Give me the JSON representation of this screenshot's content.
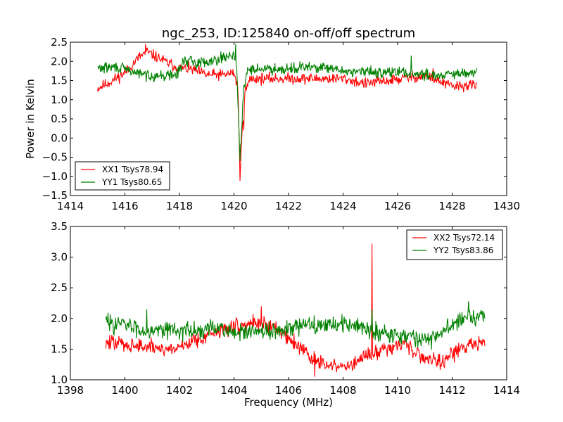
{
  "figure": {
    "title": "ngc_253, ID:125840 on-off/off spectrum",
    "x_axis_label": "Frequency (MHz)",
    "y_axis_label": "Power in Kelvin"
  },
  "chart_data": [
    {
      "type": "line",
      "panel": "top",
      "title": "ngc_253, ID:125840 on-off/off spectrum",
      "xlabel": "",
      "ylabel": "Power in Kelvin",
      "xlim": [
        1414,
        1430
      ],
      "ylim": [
        -1.5,
        2.5
      ],
      "xticks": [
        1414,
        1416,
        1418,
        1420,
        1422,
        1424,
        1426,
        1428,
        1430
      ],
      "yticks": [
        -1.5,
        -1.0,
        -0.5,
        0.0,
        0.5,
        1.0,
        1.5,
        2.0,
        2.5
      ],
      "xtick_labels": [
        "1414",
        "1416",
        "1418",
        "1420",
        "1422",
        "1424",
        "1426",
        "1428",
        "1430"
      ],
      "ytick_labels": [
        "−1.5",
        "−1.0",
        "−0.5",
        "0.0",
        "0.5",
        "1.0",
        "1.5",
        "2.0",
        "2.5"
      ],
      "grid": false,
      "legend_position": "bottom-left",
      "x_range": [
        1415.0,
        1428.9
      ],
      "series": [
        {
          "name": "XX1 Tsys78.94",
          "color": "#ff0000",
          "noise": 0.09,
          "seed": 11,
          "points": [
            [
              1415.0,
              1.3
            ],
            [
              1415.5,
              1.48
            ],
            [
              1416.0,
              1.7
            ],
            [
              1416.5,
              2.1
            ],
            [
              1416.8,
              2.25
            ],
            [
              1417.2,
              2.1
            ],
            [
              1417.6,
              1.95
            ],
            [
              1418.0,
              1.82
            ],
            [
              1418.4,
              1.8
            ],
            [
              1419.0,
              1.65
            ],
            [
              1419.6,
              1.65
            ],
            [
              1420.0,
              1.7
            ],
            [
              1420.15,
              1.3
            ],
            [
              1420.22,
              -1.1
            ],
            [
              1420.3,
              0.2
            ],
            [
              1420.4,
              1.2
            ],
            [
              1420.6,
              1.55
            ],
            [
              1421.5,
              1.55
            ],
            [
              1423.0,
              1.55
            ],
            [
              1424.0,
              1.55
            ],
            [
              1424.8,
              1.42
            ],
            [
              1425.5,
              1.48
            ],
            [
              1426.5,
              1.58
            ],
            [
              1427.0,
              1.62
            ],
            [
              1428.0,
              1.35
            ],
            [
              1428.9,
              1.38
            ]
          ],
          "spikes": [
            [
              1416.75,
              2.45
            ],
            [
              1420.22,
              -1.12
            ],
            [
              1420.35,
              0.2
            ],
            [
              1427.3,
              1.82
            ]
          ]
        },
        {
          "name": "YY1 Tsys80.65",
          "color": "#008000",
          "noise": 0.09,
          "seed": 29,
          "points": [
            [
              1415.0,
              1.82
            ],
            [
              1415.7,
              1.85
            ],
            [
              1416.2,
              1.75
            ],
            [
              1416.7,
              1.65
            ],
            [
              1417.3,
              1.62
            ],
            [
              1417.9,
              1.65
            ],
            [
              1418.2,
              2.05
            ],
            [
              1418.6,
              1.95
            ],
            [
              1419.0,
              2.0
            ],
            [
              1419.6,
              2.1
            ],
            [
              1420.0,
              2.2
            ],
            [
              1420.1,
              1.8
            ],
            [
              1420.22,
              -0.6
            ],
            [
              1420.35,
              1.2
            ],
            [
              1420.5,
              1.8
            ],
            [
              1421.0,
              1.8
            ],
            [
              1422.0,
              1.82
            ],
            [
              1423.0,
              1.85
            ],
            [
              1424.0,
              1.75
            ],
            [
              1425.0,
              1.72
            ],
            [
              1426.0,
              1.72
            ],
            [
              1427.0,
              1.65
            ],
            [
              1428.0,
              1.65
            ],
            [
              1428.9,
              1.7
            ]
          ],
          "spikes": [
            [
              1420.05,
              2.45
            ],
            [
              1420.22,
              -0.6
            ],
            [
              1426.5,
              2.15
            ]
          ]
        }
      ]
    },
    {
      "type": "line",
      "panel": "bottom",
      "xlabel": "Frequency (MHz)",
      "ylabel": "",
      "xlim": [
        1398,
        1414
      ],
      "ylim": [
        1.0,
        3.5
      ],
      "xticks": [
        1398,
        1400,
        1402,
        1404,
        1406,
        1408,
        1410,
        1412,
        1414
      ],
      "yticks": [
        1.0,
        1.5,
        2.0,
        2.5,
        3.0,
        3.5
      ],
      "xtick_labels": [
        "1398",
        "1400",
        "1402",
        "1404",
        "1406",
        "1408",
        "1410",
        "1412",
        "1414"
      ],
      "ytick_labels": [
        "1.0",
        "1.5",
        "2.0",
        "2.5",
        "3.0",
        "3.5"
      ],
      "grid": false,
      "legend_position": "top-right",
      "x_range": [
        1399.3,
        1413.2
      ],
      "series": [
        {
          "name": "XX2 Tsys72.14",
          "color": "#ff0000",
          "noise": 0.08,
          "seed": 47,
          "points": [
            [
              1399.3,
              1.6
            ],
            [
              1399.8,
              1.6
            ],
            [
              1400.5,
              1.55
            ],
            [
              1401.2,
              1.52
            ],
            [
              1401.8,
              1.5
            ],
            [
              1402.4,
              1.62
            ],
            [
              1403.0,
              1.72
            ],
            [
              1403.8,
              1.85
            ],
            [
              1404.3,
              1.88
            ],
            [
              1404.8,
              1.95
            ],
            [
              1405.5,
              1.85
            ],
            [
              1406.0,
              1.7
            ],
            [
              1406.5,
              1.5
            ],
            [
              1407.0,
              1.3
            ],
            [
              1407.5,
              1.22
            ],
            [
              1408.2,
              1.22
            ],
            [
              1408.8,
              1.35
            ],
            [
              1409.5,
              1.52
            ],
            [
              1410.3,
              1.58
            ],
            [
              1411.0,
              1.35
            ],
            [
              1411.6,
              1.32
            ],
            [
              1412.0,
              1.4
            ],
            [
              1412.4,
              1.55
            ],
            [
              1413.2,
              1.62
            ]
          ],
          "spikes": [
            [
              1409.05,
              3.22
            ],
            [
              1405.0,
              2.2
            ],
            [
              1406.95,
              1.05
            ]
          ]
        },
        {
          "name": "YY2 Tsys83.86",
          "color": "#008000",
          "noise": 0.09,
          "seed": 83,
          "points": [
            [
              1399.3,
              1.95
            ],
            [
              1400.0,
              1.9
            ],
            [
              1400.7,
              1.8
            ],
            [
              1401.4,
              1.85
            ],
            [
              1402.0,
              1.8
            ],
            [
              1402.8,
              1.8
            ],
            [
              1403.5,
              1.85
            ],
            [
              1404.2,
              1.75
            ],
            [
              1405.0,
              1.78
            ],
            [
              1405.6,
              1.8
            ],
            [
              1406.2,
              1.85
            ],
            [
              1407.0,
              1.9
            ],
            [
              1408.0,
              1.92
            ],
            [
              1409.0,
              1.82
            ],
            [
              1409.8,
              1.75
            ],
            [
              1410.5,
              1.7
            ],
            [
              1411.2,
              1.65
            ],
            [
              1411.7,
              1.8
            ],
            [
              1412.2,
              1.95
            ],
            [
              1412.7,
              2.05
            ],
            [
              1413.2,
              2.05
            ]
          ],
          "spikes": [
            [
              1400.8,
              2.15
            ],
            [
              1409.05,
              2.15
            ],
            [
              1412.6,
              2.28
            ]
          ]
        }
      ]
    }
  ]
}
